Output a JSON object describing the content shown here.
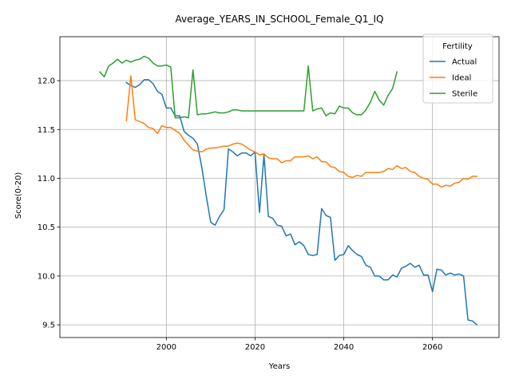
{
  "chart_data": {
    "type": "line",
    "title": "Average_YEARS_IN_SCHOOL_Female_Q1_IQ",
    "xlabel": "Years",
    "ylabel": "Score(0-20)",
    "xlim": [
      1976,
      2075
    ],
    "ylim": [
      9.37,
      12.45
    ],
    "xticks": [
      2000,
      2020,
      2040,
      2060
    ],
    "yticks": [
      9.5,
      10.0,
      10.5,
      11.0,
      11.5,
      12.0
    ],
    "xtick_labels": [
      "2000",
      "2020",
      "2040",
      "2060"
    ],
    "ytick_labels": [
      "9.5",
      "10.0",
      "10.5",
      "11.0",
      "11.5",
      "12.0"
    ],
    "grid": true,
    "legend": {
      "title": "Fertility",
      "position": "top-right"
    },
    "series": [
      {
        "name": "Actual",
        "color": "#1f77b4",
        "x": [
          1991,
          1992,
          1993,
          1994,
          1995,
          1996,
          1997,
          1998,
          1999,
          2000,
          2001,
          2002,
          2003,
          2004,
          2005,
          2006,
          2007,
          2008,
          2009,
          2010,
          2011,
          2012,
          2013,
          2014,
          2015,
          2016,
          2017,
          2018,
          2019,
          2020,
          2021,
          2022,
          2023,
          2024,
          2025,
          2026,
          2027,
          2028,
          2029,
          2030,
          2031,
          2032,
          2033,
          2034,
          2035,
          2036,
          2037,
          2038,
          2039,
          2040,
          2041,
          2042,
          2043,
          2044,
          2045,
          2046,
          2047,
          2048,
          2049,
          2050,
          2051,
          2052,
          2053,
          2054,
          2055,
          2056,
          2057,
          2058,
          2059,
          2060,
          2061,
          2062,
          2063,
          2064,
          2065,
          2066,
          2067,
          2068,
          2069,
          2070
        ],
        "values": [
          11.98,
          11.95,
          11.93,
          11.96,
          12.01,
          12.01,
          11.97,
          11.89,
          11.86,
          11.72,
          11.72,
          11.64,
          11.64,
          11.48,
          11.44,
          11.41,
          11.35,
          11.11,
          10.82,
          10.55,
          10.52,
          10.61,
          10.68,
          11.3,
          11.27,
          11.23,
          11.26,
          11.26,
          11.23,
          11.27,
          10.65,
          11.24,
          10.61,
          10.59,
          10.52,
          10.51,
          10.41,
          10.43,
          10.32,
          10.35,
          10.31,
          10.22,
          10.21,
          10.22,
          10.69,
          10.62,
          10.6,
          10.16,
          10.21,
          10.22,
          10.31,
          10.26,
          10.22,
          10.2,
          10.11,
          10.09,
          10.0,
          10.0,
          9.96,
          9.96,
          10.01,
          9.99,
          10.08,
          10.1,
          10.13,
          10.09,
          10.11,
          10.01,
          10.01,
          9.84,
          10.07,
          10.06,
          10.01,
          10.03,
          10.01,
          10.02,
          10.0,
          9.55,
          9.54,
          9.5
        ]
      },
      {
        "name": "Ideal",
        "color": "#ff7f0e",
        "x": [
          1991,
          1992,
          1993,
          1994,
          1995,
          1996,
          1997,
          1998,
          1999,
          2000,
          2001,
          2002,
          2003,
          2004,
          2005,
          2006,
          2007,
          2008,
          2009,
          2010,
          2011,
          2012,
          2013,
          2014,
          2015,
          2016,
          2017,
          2018,
          2019,
          2020,
          2021,
          2022,
          2023,
          2024,
          2025,
          2026,
          2027,
          2028,
          2029,
          2030,
          2031,
          2032,
          2033,
          2034,
          2035,
          2036,
          2037,
          2038,
          2039,
          2040,
          2041,
          2042,
          2043,
          2044,
          2045,
          2046,
          2047,
          2048,
          2049,
          2050,
          2051,
          2052,
          2053,
          2054,
          2055,
          2056,
          2057,
          2058,
          2059,
          2060,
          2061,
          2062,
          2063,
          2064,
          2065,
          2066,
          2067,
          2068,
          2069,
          2070
        ],
        "values": [
          11.59,
          12.05,
          11.6,
          11.58,
          11.56,
          11.52,
          11.51,
          11.46,
          11.54,
          11.52,
          11.52,
          11.49,
          11.46,
          11.39,
          11.34,
          11.29,
          11.28,
          11.27,
          11.3,
          11.31,
          11.31,
          11.32,
          11.33,
          11.33,
          11.35,
          11.36,
          11.35,
          11.32,
          11.29,
          11.27,
          11.24,
          11.25,
          11.21,
          11.2,
          11.2,
          11.16,
          11.18,
          11.18,
          11.22,
          11.22,
          11.22,
          11.23,
          11.2,
          11.22,
          11.17,
          11.17,
          11.12,
          11.11,
          11.07,
          11.06,
          11.02,
          11.01,
          11.03,
          11.02,
          11.06,
          11.06,
          11.06,
          11.06,
          11.07,
          11.1,
          11.09,
          11.13,
          11.1,
          11.11,
          11.07,
          11.06,
          11.02,
          11.0,
          10.99,
          10.94,
          10.94,
          10.91,
          10.93,
          10.92,
          10.95,
          10.96,
          11.0,
          10.99,
          11.02,
          11.02
        ]
      },
      {
        "name": "Sterile",
        "color": "#2ca02c",
        "x": [
          1985,
          1986,
          1987,
          1988,
          1989,
          1990,
          1991,
          1992,
          1993,
          1994,
          1995,
          1996,
          1997,
          1998,
          1999,
          2000,
          2001,
          2002,
          2003,
          2004,
          2005,
          2006,
          2007,
          2008,
          2009,
          2010,
          2011,
          2012,
          2013,
          2014,
          2015,
          2016,
          2017,
          2018,
          2019,
          2020,
          2021,
          2022,
          2023,
          2024,
          2025,
          2026,
          2027,
          2028,
          2029,
          2030,
          2031,
          2032,
          2033,
          2034,
          2035,
          2036,
          2037,
          2038,
          2039,
          2040,
          2041,
          2042,
          2043,
          2044,
          2045,
          2046,
          2047,
          2048,
          2049,
          2050,
          2051,
          2052
        ],
        "values": [
          12.09,
          12.04,
          12.15,
          12.18,
          12.22,
          12.18,
          12.21,
          12.19,
          12.21,
          12.22,
          12.25,
          12.23,
          12.18,
          12.15,
          12.15,
          12.16,
          12.14,
          11.62,
          11.62,
          11.63,
          11.62,
          12.11,
          11.65,
          11.66,
          11.66,
          11.67,
          11.68,
          11.67,
          11.67,
          11.68,
          11.7,
          11.7,
          11.69,
          11.69,
          11.69,
          11.69,
          11.69,
          11.69,
          11.69,
          11.69,
          11.69,
          11.69,
          11.69,
          11.69,
          11.69,
          11.69,
          11.69,
          12.15,
          11.69,
          11.71,
          11.72,
          11.64,
          11.67,
          11.66,
          11.74,
          11.72,
          11.72,
          11.67,
          11.65,
          11.65,
          11.7,
          11.78,
          11.89,
          11.8,
          11.75,
          11.85,
          11.92,
          12.09
        ]
      }
    ]
  }
}
